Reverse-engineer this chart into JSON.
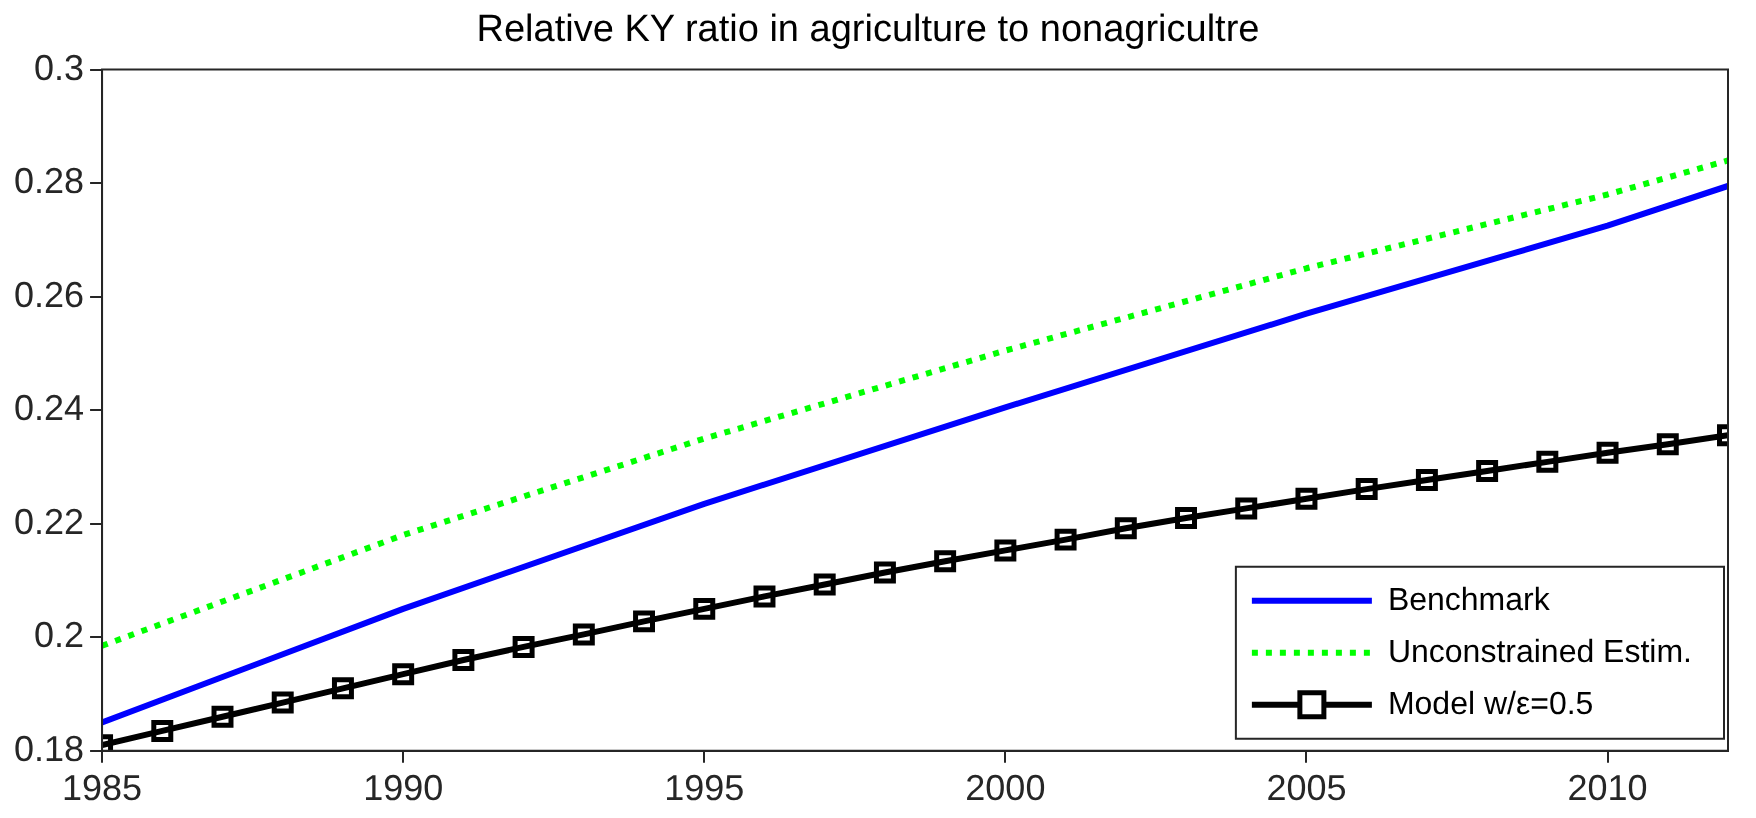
{
  "chart_data": {
    "type": "line",
    "title": "Relative KY ratio in agriculture to nonagricultre",
    "xlim": [
      1985,
      2012
    ],
    "xticks": [
      1985,
      1990,
      1995,
      2000,
      2005,
      2010
    ],
    "ylim": [
      0.18,
      0.3
    ],
    "yticks": [
      0.18,
      0.2,
      0.22,
      0.24,
      0.26,
      0.28,
      0.3
    ],
    "grid": false,
    "legend": "bottom right",
    "series": [
      {
        "name": "Benchmark",
        "color": "#0000ff",
        "line_style": "solid",
        "marker": "none",
        "x": [
          1985,
          1987,
          1990,
          1995,
          2000,
          2005,
          2010,
          2012
        ],
        "values": [
          0.185,
          0.193,
          0.205,
          0.2235,
          0.2405,
          0.257,
          0.2725,
          0.2795
        ]
      },
      {
        "name": "Unconstrained Estim.",
        "color": "#00ff00",
        "line_style": "dotted",
        "marker": "none",
        "x": [
          1985,
          1990,
          1995,
          2000,
          2005,
          2010,
          2012
        ],
        "values": [
          0.1985,
          0.218,
          0.235,
          0.2505,
          0.265,
          0.278,
          0.284
        ]
      },
      {
        "name": "Model w/ε=0.5",
        "color": "#000000",
        "line_style": "solid",
        "marker": "square",
        "x": [
          1985,
          1986,
          1987,
          1988,
          1989,
          1990,
          1991,
          1992,
          1993,
          1994,
          1995,
          1996,
          1997,
          1998,
          1999,
          2000,
          2001,
          2002,
          2003,
          2004,
          2005,
          2006,
          2007,
          2008,
          2009,
          2010,
          2011,
          2012
        ],
        "values": [
          0.181,
          0.1835,
          0.186,
          0.1885,
          0.191,
          0.1935,
          0.196,
          0.1983,
          0.2005,
          0.2028,
          0.205,
          0.2072,
          0.2093,
          0.2114,
          0.2134,
          0.2153,
          0.2172,
          0.2192,
          0.221,
          0.2227,
          0.2244,
          0.2261,
          0.2277,
          0.2293,
          0.2309,
          0.2325,
          0.234,
          0.2356
        ]
      }
    ]
  }
}
